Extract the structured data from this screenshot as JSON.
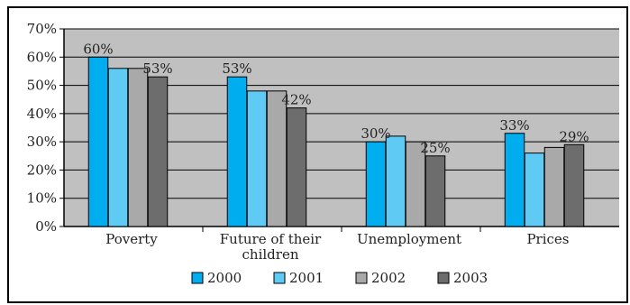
{
  "chart_data": {
    "type": "bar",
    "categories": [
      "Poverty",
      "Future of their children",
      "Unemployment",
      "Prices"
    ],
    "category_lines": [
      [
        "Poverty"
      ],
      [
        "Future of their",
        "children"
      ],
      [
        "Unemployment"
      ],
      [
        "Prices"
      ]
    ],
    "series": [
      {
        "name": "2000",
        "values": [
          60,
          53,
          30,
          33
        ],
        "color": "#00aeef"
      },
      {
        "name": "2001",
        "values": [
          56,
          48,
          32,
          26
        ],
        "color": "#5fcbf5"
      },
      {
        "name": "2002",
        "values": [
          56,
          48,
          30,
          28
        ],
        "color": "#a9a9a9"
      },
      {
        "name": "2003",
        "values": [
          53,
          42,
          25,
          29
        ],
        "color": "#6d6d6d"
      }
    ],
    "data_labels": [
      {
        "category": 0,
        "series": 0,
        "text": "60%"
      },
      {
        "category": 0,
        "series": 3,
        "text": "53%"
      },
      {
        "category": 1,
        "series": 0,
        "text": "53%"
      },
      {
        "category": 1,
        "series": 3,
        "text": "42%"
      },
      {
        "category": 2,
        "series": 0,
        "text": "30%"
      },
      {
        "category": 2,
        "series": 3,
        "text": "25%"
      },
      {
        "category": 3,
        "series": 0,
        "text": "33%"
      },
      {
        "category": 3,
        "series": 3,
        "text": "29%"
      }
    ],
    "y_ticks": [
      "0%",
      "10%",
      "20%",
      "30%",
      "40%",
      "50%",
      "60%",
      "70%"
    ],
    "ylim": [
      0,
      70
    ],
    "grid": true,
    "legend_position": "bottom",
    "plot_background": "#c0c0c0"
  }
}
